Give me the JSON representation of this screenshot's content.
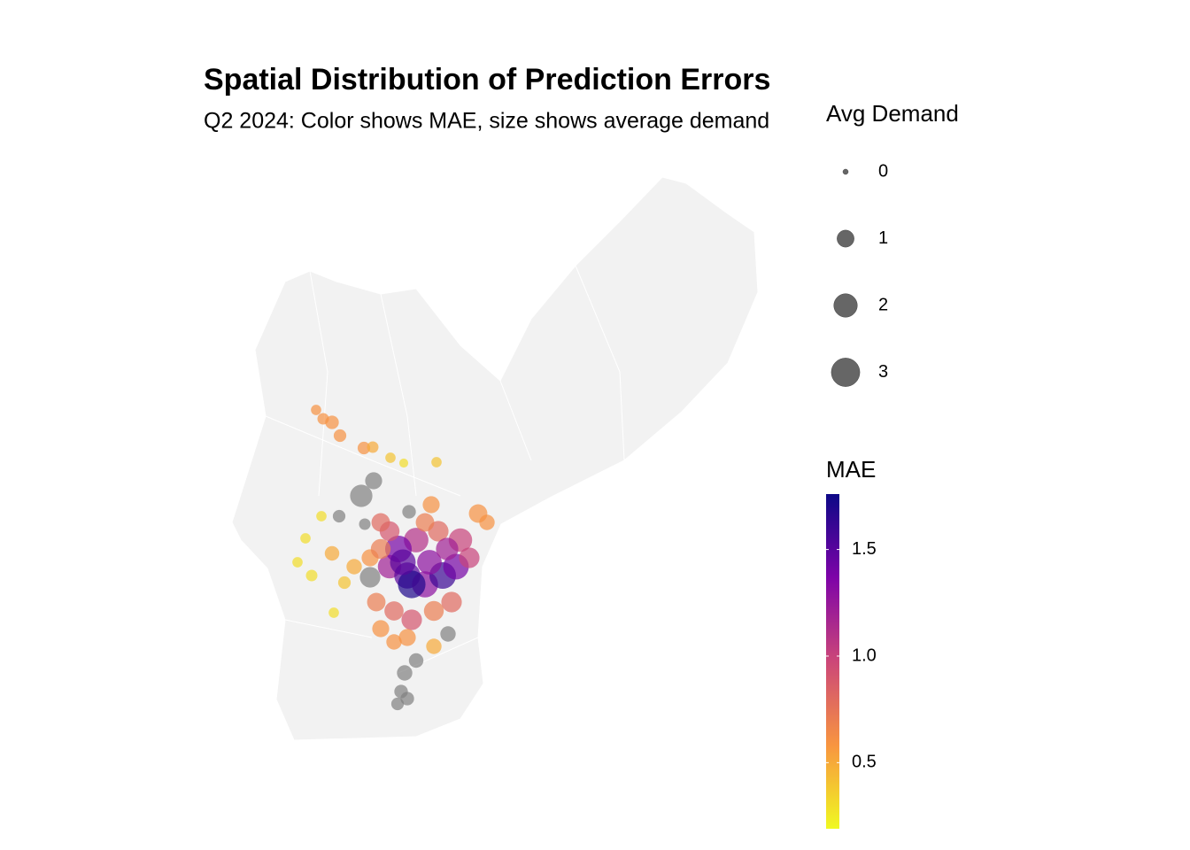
{
  "chart_data": {
    "type": "map-scatter",
    "title": "Spatial Distribution of Prediction Errors",
    "subtitle": "Q2 2024: Color shows MAE, size shows average demand",
    "xlim": [
      -75.28,
      -74.98
    ],
    "ylim": [
      39.886,
      40.14
    ],
    "size_title": "Avg Demand",
    "size_breaks": [
      0,
      1,
      2,
      3
    ],
    "color_title": "MAE",
    "colorlim": [
      0.19,
      1.76
    ],
    "colorticks": [
      0.5,
      {
        "value": 1,
        "label": "1.0"
      },
      1.5
    ],
    "na_color": "#808080",
    "lon": [
      -75.2315,
      -75.2275,
      -75.2225,
      -75.218,
      -75.2045,
      -75.1995,
      -75.1895,
      -75.182,
      -75.1635,
      -75.199,
      -75.206,
      -75.179,
      -75.2185,
      -75.204,
      -75.2285,
      -75.2375,
      -75.242,
      -75.234,
      -75.2215,
      -75.2155,
      -75.201,
      -75.201,
      -75.19,
      -75.18,
      -75.17,
      -75.16,
      -75.1525,
      -75.15,
      -75.1625,
      -75.175,
      -75.185,
      -75.19,
      -75.195,
      -75.1665,
      -75.14,
      -75.135,
      -75.145,
      -75.155,
      -75.165,
      -75.1775,
      -75.1875,
      -75.195,
      -75.18,
      -75.165,
      -75.157,
      -75.175,
      -75.1815,
      -75.1835,
      -75.18,
      -75.1855,
      -75.1875,
      -75.1975,
      -75.21,
      -75.2225,
      -75.1775,
      -75.1825,
      -75.1675,
      -75.1575,
      -75.195,
      -75.17
    ],
    "lat": [
      40.0348,
      40.0308,
      40.0292,
      40.0232,
      40.0176,
      40.018,
      40.0132,
      40.0108,
      40.0112,
      40.0028,
      39.996,
      39.9888,
      39.9868,
      39.9832,
      39.9868,
      39.9768,
      39.966,
      39.96,
      39.9432,
      39.9568,
      39.9592,
      39.968,
      39.964,
      39.96,
      39.956,
      39.96,
      39.964,
      39.976,
      39.98,
      39.976,
      39.972,
      39.98,
      39.984,
      39.992,
      39.988,
      39.984,
      39.968,
      39.948,
      39.944,
      39.94,
      39.944,
      39.936,
      39.932,
      39.928,
      39.9336,
      39.9216,
      39.916,
      39.9076,
      39.9044,
      39.902,
      39.93,
      39.948,
      39.964,
      39.97,
      39.956,
      39.966,
      39.966,
      39.972,
      39.972,
      39.984
    ],
    "mae": [
      0.6,
      0.6,
      0.6,
      0.6,
      0.6,
      0.5,
      0.4,
      0.3,
      0.4,
      null,
      null,
      null,
      null,
      null,
      0.3,
      0.3,
      0.3,
      0.3,
      0.3,
      0.4,
      null,
      0.6,
      1.2,
      1.5,
      1.3,
      1.6,
      1.4,
      1.0,
      0.8,
      1.1,
      1.4,
      0.9,
      0.8,
      0.6,
      0.6,
      0.6,
      1.0,
      0.8,
      0.7,
      0.9,
      0.8,
      0.6,
      0.6,
      0.5,
      null,
      null,
      null,
      null,
      null,
      null,
      0.6,
      0.7,
      0.5,
      0.5,
      1.7,
      1.5,
      1.3,
      1.2,
      0.7,
      0.7
    ],
    "demand": [
      0.3,
      0.4,
      0.6,
      0.5,
      0.5,
      0.4,
      0.3,
      0.2,
      0.3,
      1.0,
      1.8,
      0.6,
      0.5,
      0.4,
      0.3,
      0.3,
      0.3,
      0.4,
      0.3,
      0.5,
      1.5,
      1.0,
      2.0,
      2.5,
      2.5,
      2.6,
      2.4,
      2.0,
      1.5,
      2.2,
      2.6,
      1.4,
      1.2,
      1.0,
      1.2,
      0.8,
      1.5,
      1.5,
      1.4,
      1.5,
      1.3,
      1.0,
      1.0,
      0.8,
      0.8,
      0.7,
      0.8,
      0.6,
      0.6,
      0.5,
      0.8,
      1.2,
      0.8,
      0.7,
      2.8,
      2.4,
      2.2,
      1.8,
      1.4,
      1.2
    ]
  }
}
